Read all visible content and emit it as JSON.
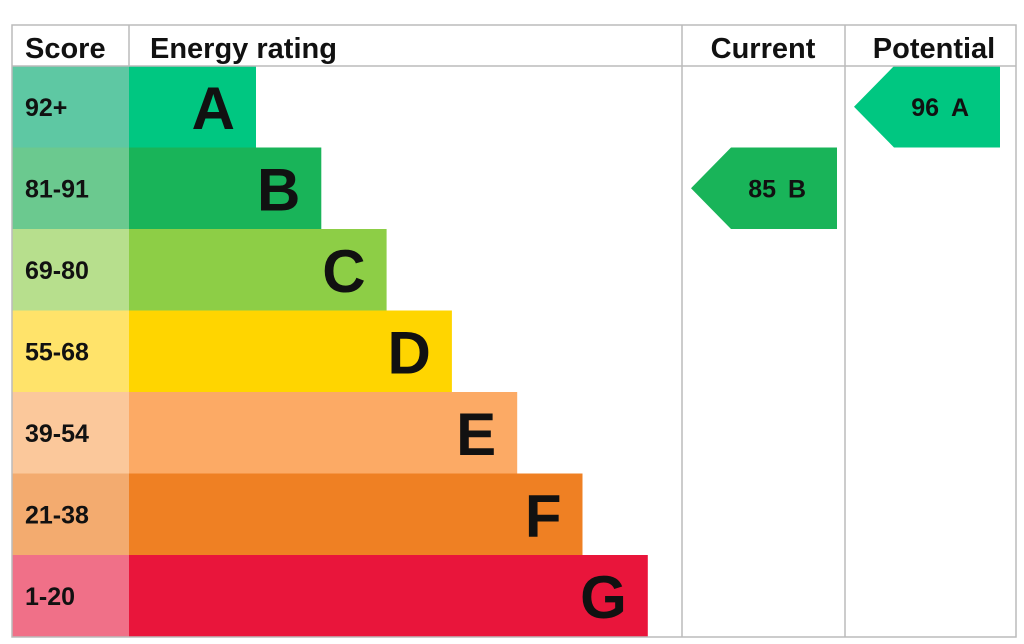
{
  "headers": {
    "score": "Score",
    "energy_rating": "Energy rating",
    "current": "Current",
    "potential": "Potential"
  },
  "chart_data": {
    "type": "bar",
    "bands": [
      {
        "score": "92+",
        "letter": "A",
        "color": "#00c781",
        "score_bg": "#5ec8a3"
      },
      {
        "score": "81-91",
        "letter": "B",
        "color": "#19b459",
        "score_bg": "#6bc98f"
      },
      {
        "score": "69-80",
        "letter": "C",
        "color": "#8dce46",
        "score_bg": "#b7df8d"
      },
      {
        "score": "55-68",
        "letter": "D",
        "color": "#ffd500",
        "score_bg": "#ffe36a"
      },
      {
        "score": "39-54",
        "letter": "E",
        "color": "#fcaa65",
        "score_bg": "#fbc89b"
      },
      {
        "score": "21-38",
        "letter": "F",
        "color": "#ef8023",
        "score_bg": "#f3ab6f"
      },
      {
        "score": "1-20",
        "letter": "G",
        "color": "#e9153b",
        "score_bg": "#f07088"
      }
    ],
    "current": {
      "value": 85,
      "letter": "B",
      "color": "#19b459"
    },
    "potential": {
      "value": 96,
      "letter": "A",
      "color": "#00c781"
    }
  }
}
